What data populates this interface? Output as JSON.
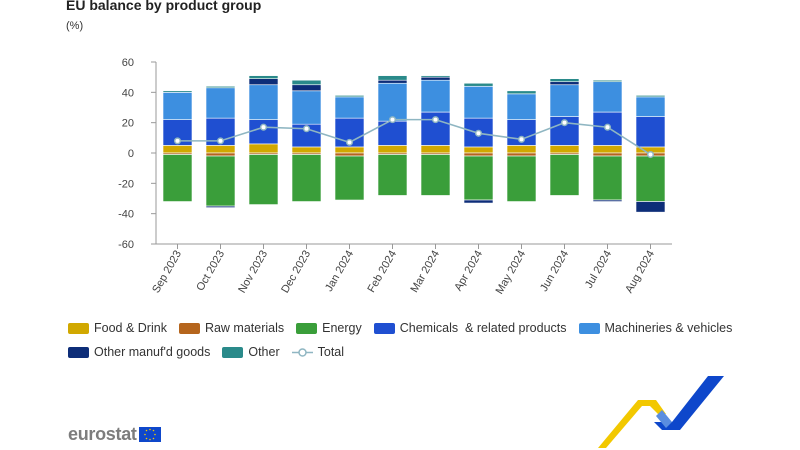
{
  "title": "EU balance by product group",
  "unit": "(%)",
  "colors": {
    "food": "#d1a800",
    "raw": "#b5651d",
    "energy": "#3a9e3a",
    "chemicals": "#1f4fd1",
    "machinery": "#3d8fe0",
    "other_manuf": "#0d2d78",
    "other": "#2a8a8a",
    "total": "#8fb6c2",
    "logo_blue": "#0e47cb",
    "logo_yellow": "#f2c800"
  },
  "chart_data": {
    "type": "bar",
    "stacked": true,
    "categories": [
      "Sep 2023",
      "Oct 2023",
      "Nov 2023",
      "Dec 2023",
      "Jan 2024",
      "Feb 2024",
      "Mar 2024",
      "Apr 2024",
      "May 2024",
      "Jun 2024",
      "Jul 2024",
      "Aug 2024"
    ],
    "ylim": [
      -60,
      60
    ],
    "yticks": [
      60,
      40,
      20,
      0,
      -20,
      -40,
      -60
    ],
    "grid": false,
    "series": [
      {
        "key": "food",
        "name": "Food & Drink",
        "values": [
          5,
          5,
          6,
          4,
          4,
          5,
          5,
          4,
          5,
          5,
          5,
          4
        ]
      },
      {
        "key": "raw",
        "name": "Raw materials",
        "values": [
          -1,
          -2,
          -1,
          -1,
          -2,
          -1,
          -1,
          -2,
          -2,
          -1,
          -2,
          -2
        ]
      },
      {
        "key": "energy",
        "name": "Energy",
        "values": [
          -31,
          -33,
          -33,
          -31,
          -29,
          -27,
          -27,
          -29,
          -30,
          -27,
          -29,
          -30
        ]
      },
      {
        "key": "chemicals",
        "name": "Chemicals  & related products",
        "values": [
          17,
          18,
          16,
          15,
          19,
          16,
          22,
          19,
          17,
          19,
          22,
          20
        ]
      },
      {
        "key": "machinery",
        "name": "Machineries & vehicles",
        "values": [
          18,
          20,
          23,
          22,
          14,
          25,
          21,
          21,
          17,
          21,
          20,
          13
        ]
      },
      {
        "key": "other_manuf",
        "name": "Other manuf'd goods",
        "values": [
          0,
          -1,
          4,
          4,
          0,
          2,
          2,
          -2,
          0,
          2,
          -1,
          -7
        ]
      },
      {
        "key": "other",
        "name": "Other",
        "values": [
          1,
          1,
          2,
          3,
          1,
          3,
          1,
          2,
          2,
          2,
          1,
          1
        ]
      }
    ],
    "total": {
      "key": "total",
      "name": "Total",
      "values": [
        8,
        8,
        17,
        16,
        7,
        22,
        22,
        13,
        9,
        20,
        17,
        -1
      ]
    }
  },
  "logo": {
    "text": "eurostat"
  }
}
